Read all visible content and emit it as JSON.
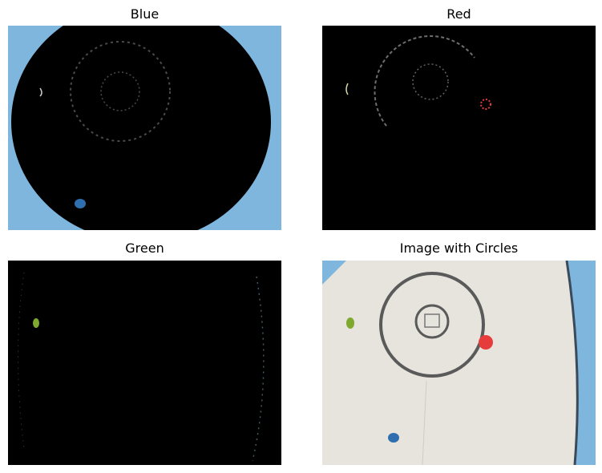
{
  "panels": [
    {
      "title": "Blue"
    },
    {
      "title": "Red"
    },
    {
      "title": "Green"
    },
    {
      "title": "Image with Circles"
    }
  ],
  "colors": {
    "background": "#ffffff",
    "mask_black": "#000000",
    "sky_blue": "#7fb6dd",
    "blue_disc": "#2f6fb0",
    "red_disc": "#e63c3c",
    "green_disc": "#7fa82e",
    "mat": "#e6e4dc",
    "ring": "#5a5a5a"
  }
}
